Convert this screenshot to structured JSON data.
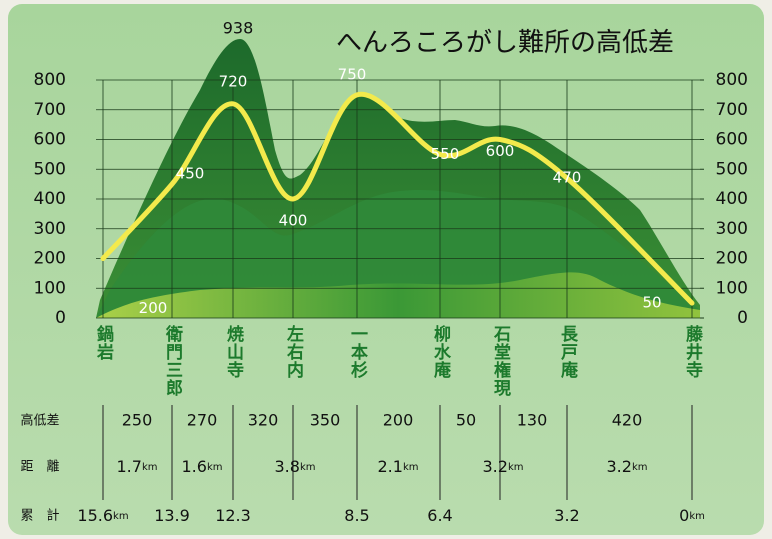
{
  "chart_data": {
    "type": "line",
    "title": "へんろころがし難所の高低差",
    "categories": [
      "鍋岩",
      "衛門三郎",
      "焼山寺",
      "左右内",
      "一本杉",
      "柳水庵",
      "石堂権現",
      "長戸庵",
      "藤井寺"
    ],
    "series": [
      {
        "color": "#f3ea4c",
        "values": [
          200,
          450,
          720,
          400,
          750,
          550,
          600,
          470,
          50
        ]
      }
    ],
    "summit": 938,
    "ylim": [
      0,
      800
    ],
    "yticks": [
      0,
      100,
      200,
      300,
      400,
      500,
      600,
      700,
      800
    ],
    "y2lim": [
      0,
      800
    ],
    "y2ticks": [
      0,
      100,
      200,
      300,
      400,
      500,
      600,
      700,
      800
    ],
    "grid": true,
    "table": {
      "elevation_difference": {
        "label": "高低差",
        "values": [
          250,
          270,
          320,
          350,
          200,
          50,
          130,
          420
        ]
      },
      "distance": {
        "label": "距　離",
        "values": [
          1.7,
          1.6,
          3.8,
          2.1,
          3.2,
          3.2
        ],
        "unit": "km"
      },
      "cumulative": {
        "label": "累　計",
        "values": [
          15.6,
          13.9,
          12.3,
          8.5,
          6.4,
          3.2,
          0
        ],
        "unit": "km"
      }
    }
  }
}
